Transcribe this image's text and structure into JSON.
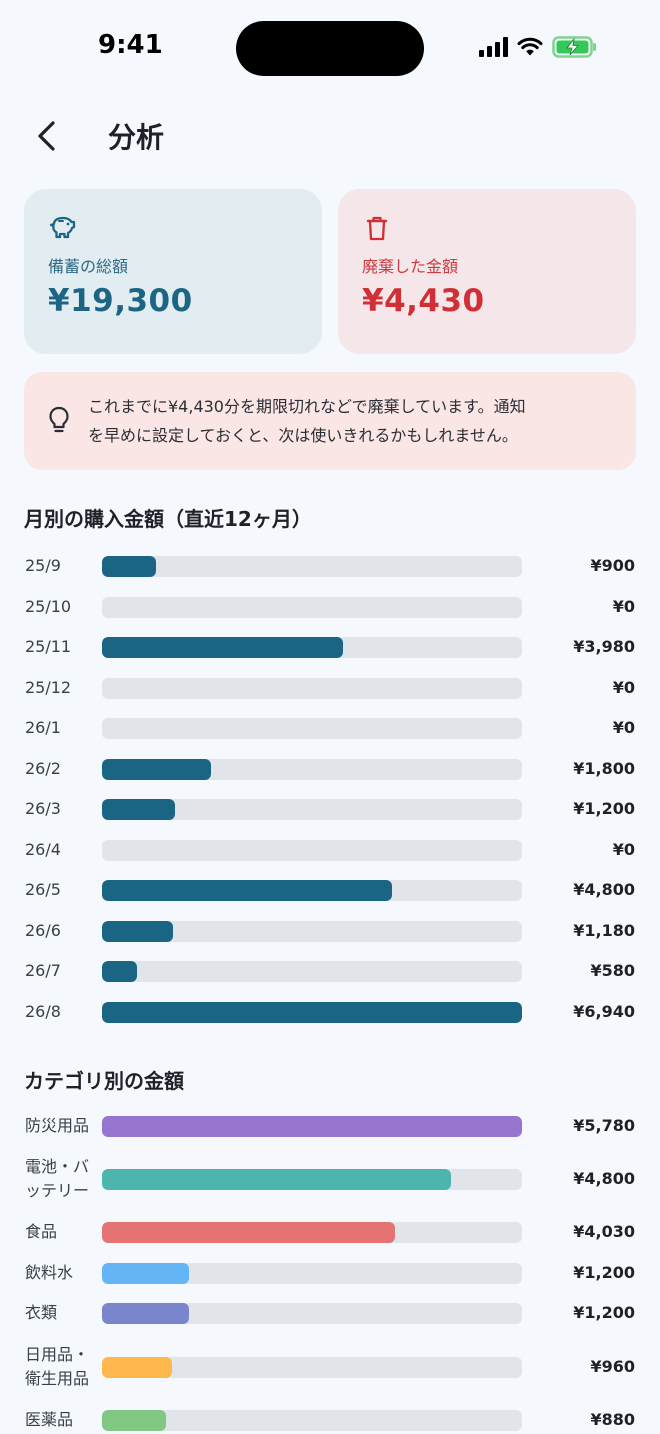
{
  "status_bar": {
    "time": "9:41"
  },
  "header": {
    "title": "分析"
  },
  "summary": {
    "saving": {
      "label": "備蓄の総額",
      "value": "¥19,300",
      "icon": "piggy-bank-icon"
    },
    "waste": {
      "label": "廃棄した金額",
      "value": "¥4,430",
      "icon": "trash-icon"
    }
  },
  "tip": {
    "icon": "lightbulb-icon",
    "lines": [
      "これまでに¥4,430分を期限切れなどで廃棄しています。通知",
      "を早めに設定しておくと、次は使いきれるかもしれません。"
    ]
  },
  "monthly": {
    "title": "月別の購入金額（直近12ヶ月）",
    "color": "#1b6584",
    "max": 6940,
    "items": [
      {
        "label": "25/9",
        "amount": 900,
        "value_text": "¥900"
      },
      {
        "label": "25/10",
        "amount": 0,
        "value_text": "¥0"
      },
      {
        "label": "25/11",
        "amount": 3980,
        "value_text": "¥3,980"
      },
      {
        "label": "25/12",
        "amount": 0,
        "value_text": "¥0"
      },
      {
        "label": "26/1",
        "amount": 0,
        "value_text": "¥0"
      },
      {
        "label": "26/2",
        "amount": 1800,
        "value_text": "¥1,800"
      },
      {
        "label": "26/3",
        "amount": 1200,
        "value_text": "¥1,200"
      },
      {
        "label": "26/4",
        "amount": 0,
        "value_text": "¥0"
      },
      {
        "label": "26/5",
        "amount": 4800,
        "value_text": "¥4,800"
      },
      {
        "label": "26/6",
        "amount": 1180,
        "value_text": "¥1,180"
      },
      {
        "label": "26/7",
        "amount": 580,
        "value_text": "¥580"
      },
      {
        "label": "26/8",
        "amount": 6940,
        "value_text": "¥6,940"
      }
    ]
  },
  "category": {
    "title": "カテゴリ別の金額",
    "max": 5780,
    "items": [
      {
        "label": "防災用品",
        "amount": 5780,
        "value_text": "¥5,780",
        "color": "#9575cd"
      },
      {
        "label": "電池・バ\nッテリー",
        "amount": 4800,
        "value_text": "¥4,800",
        "color": "#4db6ac"
      },
      {
        "label": "食品",
        "amount": 4030,
        "value_text": "¥4,030",
        "color": "#e57373"
      },
      {
        "label": "飲料水",
        "amount": 1200,
        "value_text": "¥1,200",
        "color": "#64b5f6"
      },
      {
        "label": "衣類",
        "amount": 1200,
        "value_text": "¥1,200",
        "color": "#7986cb"
      },
      {
        "label": "日用品・\n衛生用品",
        "amount": 960,
        "value_text": "¥960",
        "color": "#ffb74d"
      },
      {
        "label": "医薬品",
        "amount": 880,
        "value_text": "¥880",
        "color": "#81c784"
      }
    ]
  }
}
